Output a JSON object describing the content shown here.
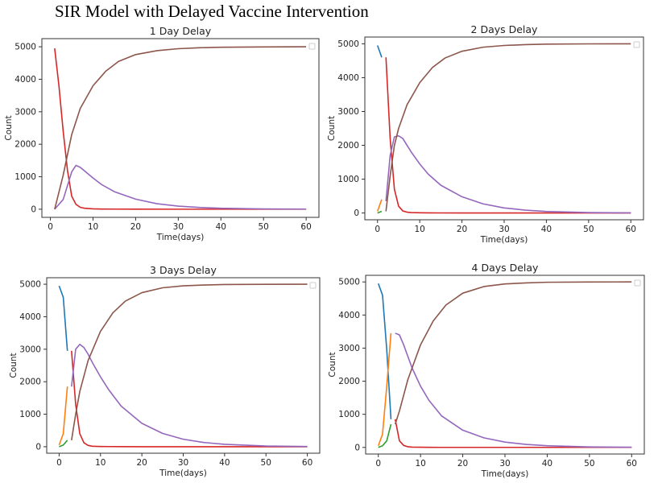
{
  "suptitle": "SIR Model with Delayed Vaccine Intervention",
  "series_colors": {
    "susceptible_pre": "#1f77b4",
    "vaccinated_pre": "#ff7f0e",
    "infected_pre": "#2ca02c",
    "susceptible_post": "#d62728",
    "infected_post": "#9467bd",
    "recovered_post": "#8c564b"
  },
  "chart_data": [
    {
      "type": "line",
      "title": "1 Day Delay",
      "xlabel": "Time(days)",
      "ylabel": "Count",
      "xlim": [
        -2,
        63
      ],
      "ylim": [
        -250,
        5250
      ],
      "xticks": [
        0,
        10,
        20,
        30,
        40,
        50,
        60
      ],
      "yticks": [
        0,
        1000,
        2000,
        3000,
        4000,
        5000
      ],
      "grid": false,
      "legend": "top-right (empty)",
      "series": [
        {
          "color": "#d62728",
          "x": [
            1,
            2,
            3,
            4,
            5,
            6,
            7,
            8,
            10,
            12,
            15,
            20,
            30,
            40,
            50,
            60
          ],
          "y": [
            4950,
            3800,
            2400,
            1200,
            400,
            150,
            60,
            30,
            12,
            6,
            4,
            2,
            1,
            1,
            1,
            1
          ]
        },
        {
          "color": "#9467bd",
          "x": [
            1,
            3,
            5,
            6,
            7,
            8,
            10,
            12,
            15,
            20,
            25,
            30,
            35,
            40,
            50,
            60
          ],
          "y": [
            0,
            300,
            1150,
            1350,
            1290,
            1180,
            960,
            760,
            540,
            310,
            170,
            95,
            55,
            30,
            10,
            4
          ]
        },
        {
          "color": "#8c564b",
          "x": [
            1,
            3,
            5,
            7,
            10,
            13,
            16,
            20,
            25,
            30,
            35,
            40,
            50,
            60
          ],
          "y": [
            0,
            1050,
            2300,
            3100,
            3800,
            4250,
            4550,
            4760,
            4880,
            4940,
            4970,
            4985,
            4995,
            5000
          ]
        }
      ]
    },
    {
      "type": "line",
      "title": "2 Days Delay",
      "xlabel": "Time(days)",
      "ylabel": "Count",
      "xlim": [
        -3,
        63
      ],
      "ylim": [
        -200,
        5200
      ],
      "xticks": [
        0,
        10,
        20,
        30,
        40,
        50,
        60
      ],
      "yticks": [
        0,
        1000,
        2000,
        3000,
        4000,
        5000
      ],
      "grid": false,
      "legend": "top-right (empty)",
      "series": [
        {
          "color": "#1f77b4",
          "x": [
            0,
            1
          ],
          "y": [
            4950,
            4600
          ]
        },
        {
          "color": "#ff7f0e",
          "x": [
            0,
            1
          ],
          "y": [
            50,
            400
          ]
        },
        {
          "color": "#2ca02c",
          "x": [
            0,
            1
          ],
          "y": [
            0,
            50
          ]
        },
        {
          "color": "#d62728",
          "x": [
            2,
            3,
            4,
            5,
            6,
            7,
            8,
            10,
            12,
            15,
            20,
            30,
            40,
            50,
            60
          ],
          "y": [
            4600,
            2200,
            700,
            200,
            60,
            25,
            12,
            6,
            4,
            2,
            1,
            1,
            1,
            1,
            1
          ]
        },
        {
          "color": "#9467bd",
          "x": [
            2,
            3,
            4,
            5,
            6,
            7,
            8,
            10,
            12,
            15,
            20,
            25,
            30,
            35,
            40,
            50,
            60
          ],
          "y": [
            350,
            1700,
            2250,
            2280,
            2200,
            2000,
            1800,
            1450,
            1150,
            820,
            480,
            270,
            150,
            85,
            45,
            12,
            4
          ]
        },
        {
          "color": "#8c564b",
          "x": [
            2,
            3,
            4,
            5,
            7,
            10,
            13,
            16,
            20,
            25,
            30,
            35,
            40,
            50,
            60
          ],
          "y": [
            50,
            1100,
            2000,
            2500,
            3200,
            3850,
            4300,
            4580,
            4780,
            4900,
            4950,
            4975,
            4990,
            4998,
            5000
          ]
        }
      ]
    },
    {
      "type": "line",
      "title": "3 Days Delay",
      "xlabel": "Time(days)",
      "ylabel": "Count",
      "xlim": [
        -3,
        63
      ],
      "ylim": [
        -200,
        5200
      ],
      "xticks": [
        0,
        10,
        20,
        30,
        40,
        50,
        60
      ],
      "yticks": [
        0,
        1000,
        2000,
        3000,
        4000,
        5000
      ],
      "grid": false,
      "legend": "top-right (empty)",
      "series": [
        {
          "color": "#1f77b4",
          "x": [
            0,
            1,
            2
          ],
          "y": [
            4950,
            4600,
            2950
          ]
        },
        {
          "color": "#ff7f0e",
          "x": [
            0,
            1,
            2
          ],
          "y": [
            50,
            400,
            1850
          ]
        },
        {
          "color": "#2ca02c",
          "x": [
            0,
            1,
            2
          ],
          "y": [
            0,
            50,
            200
          ]
        },
        {
          "color": "#d62728",
          "x": [
            3,
            4,
            5,
            6,
            7,
            8,
            10,
            12,
            15,
            20,
            30,
            40,
            50,
            60
          ],
          "y": [
            2950,
            1300,
            400,
            120,
            40,
            15,
            6,
            4,
            2,
            1,
            1,
            1,
            1,
            1
          ]
        },
        {
          "color": "#9467bd",
          "x": [
            3,
            4,
            5,
            6,
            7,
            8,
            10,
            12,
            15,
            20,
            25,
            30,
            35,
            40,
            50,
            60
          ],
          "y": [
            1850,
            3000,
            3150,
            3050,
            2850,
            2600,
            2150,
            1750,
            1250,
            720,
            410,
            230,
            130,
            75,
            22,
            6
          ]
        },
        {
          "color": "#8c564b",
          "x": [
            3,
            4,
            5,
            7,
            10,
            13,
            16,
            20,
            25,
            30,
            35,
            40,
            50,
            60
          ],
          "y": [
            200,
            1000,
            1700,
            2650,
            3550,
            4120,
            4480,
            4740,
            4890,
            4950,
            4975,
            4990,
            4998,
            5000
          ]
        }
      ]
    },
    {
      "type": "line",
      "title": "4 Days Delay",
      "xlabel": "Time(days)",
      "ylabel": "Count",
      "xlim": [
        -3,
        63
      ],
      "ylim": [
        -200,
        5200
      ],
      "xticks": [
        0,
        10,
        20,
        30,
        40,
        50,
        60
      ],
      "yticks": [
        0,
        1000,
        2000,
        3000,
        4000,
        5000
      ],
      "grid": false,
      "legend": "top-right (empty)",
      "series": [
        {
          "color": "#1f77b4",
          "x": [
            0,
            1,
            2,
            3
          ],
          "y": [
            4950,
            4600,
            2950,
            850
          ]
        },
        {
          "color": "#ff7f0e",
          "x": [
            0,
            1,
            2,
            3
          ],
          "y": [
            50,
            400,
            1850,
            3450
          ]
        },
        {
          "color": "#2ca02c",
          "x": [
            0,
            1,
            2,
            3
          ],
          "y": [
            0,
            50,
            200,
            700
          ]
        },
        {
          "color": "#d62728",
          "x": [
            4,
            5,
            6,
            7,
            8,
            10,
            12,
            15,
            20,
            30,
            40,
            50,
            60
          ],
          "y": [
            850,
            200,
            60,
            20,
            8,
            4,
            2,
            1,
            1,
            1,
            1,
            1,
            1
          ]
        },
        {
          "color": "#9467bd",
          "x": [
            4,
            5,
            6,
            7,
            8,
            10,
            12,
            15,
            20,
            25,
            30,
            35,
            40,
            50,
            60
          ],
          "y": [
            3450,
            3400,
            3100,
            2750,
            2400,
            1850,
            1420,
            950,
            520,
            290,
            160,
            90,
            50,
            14,
            4
          ]
        },
        {
          "color": "#8c564b",
          "x": [
            4,
            5,
            7,
            10,
            13,
            16,
            20,
            25,
            30,
            35,
            40,
            50,
            60
          ],
          "y": [
            700,
            1100,
            2050,
            3100,
            3820,
            4300,
            4660,
            4860,
            4940,
            4970,
            4990,
            4998,
            5000
          ]
        }
      ]
    }
  ]
}
